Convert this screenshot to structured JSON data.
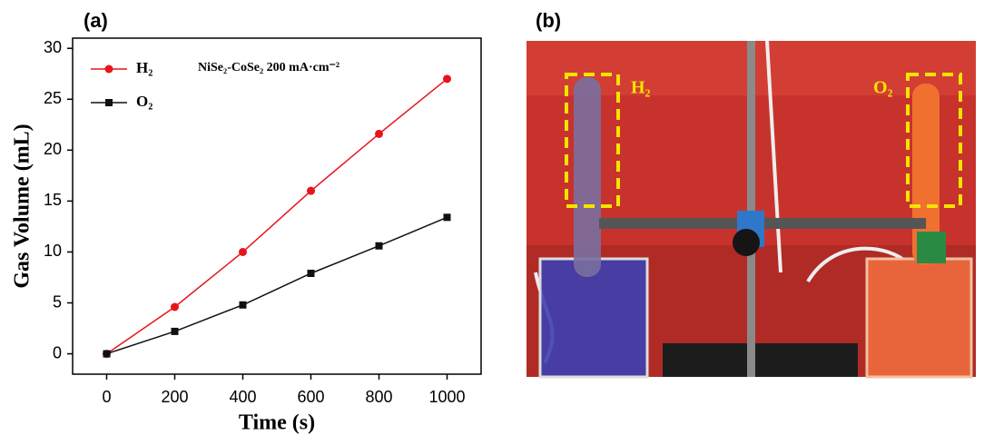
{
  "panels": {
    "a": "(a)",
    "b": "(b)"
  },
  "chart_data": {
    "type": "line",
    "x_label": "Time (s)",
    "y_label": "Gas Volume (mL)",
    "annotation": "NiSe₂-CoSe₂ 200 mA·cm⁻²",
    "x": [
      0,
      200,
      400,
      600,
      800,
      1000
    ],
    "series": [
      {
        "name": "H₂",
        "color": "#e8141a",
        "marker": "circle",
        "values": [
          0,
          4.6,
          10,
          16,
          21.6,
          27
        ]
      },
      {
        "name": "O₂",
        "color": "#111111",
        "marker": "square",
        "values": [
          0,
          2.2,
          4.8,
          7.9,
          10.6,
          13.4
        ]
      }
    ],
    "xlim": [
      -100,
      1100
    ],
    "xticks": [
      0,
      200,
      400,
      600,
      800,
      1000
    ],
    "ylim": [
      -2,
      31
    ],
    "yticks": [
      0,
      5,
      10,
      15,
      20,
      25,
      30
    ],
    "legend": "upper left"
  },
  "photo": {
    "labels": [
      "H₂",
      "O₂"
    ]
  }
}
